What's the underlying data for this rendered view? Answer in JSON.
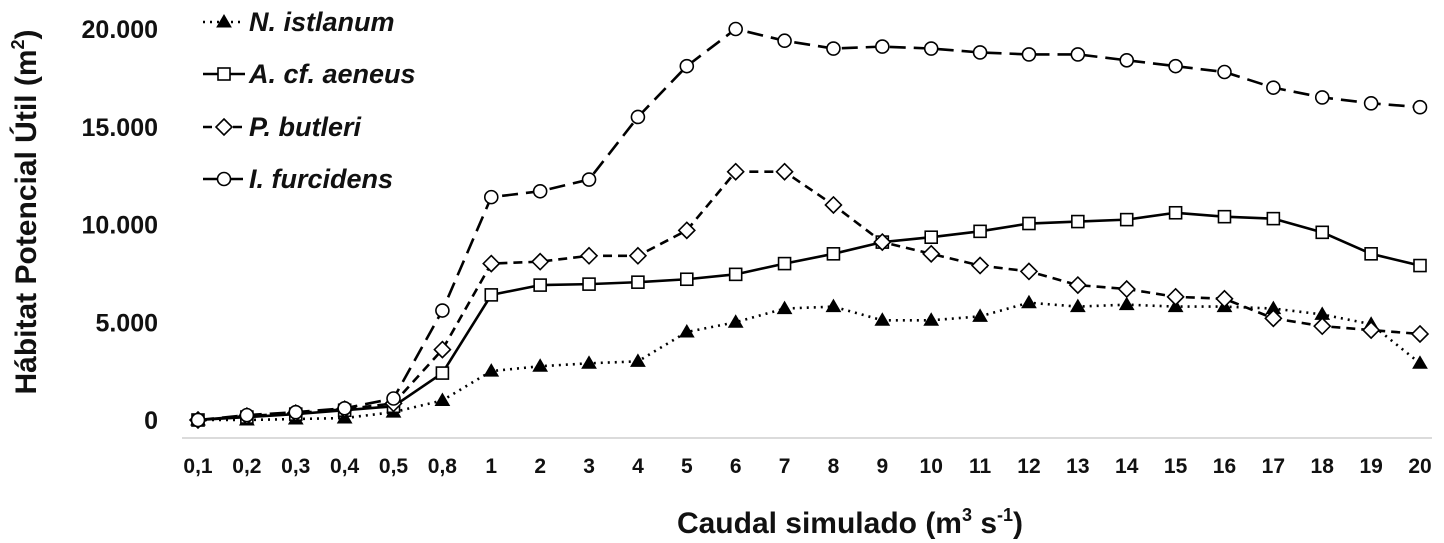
{
  "chart_data": {
    "type": "line",
    "xlabel": "Caudal simulado (m",
    "xlabel_sup1": "3",
    "xlabel_mid": " s",
    "xlabel_sup2": "-1",
    "xlabel_end": ")",
    "ylabel": "Hábitat Potencial Útil (m",
    "ylabel_sup": "2",
    "ylabel_end": ")",
    "categories": [
      "0,1",
      "0,2",
      "0,3",
      "0,4",
      "0,5",
      "0,8",
      "1",
      "2",
      "3",
      "4",
      "5",
      "6",
      "7",
      "8",
      "9",
      "10",
      "11",
      "12",
      "13",
      "14",
      "15",
      "16",
      "17",
      "18",
      "19",
      "20"
    ],
    "ylim": [
      0,
      20000
    ],
    "yticks": [
      {
        "value": 0,
        "label": "0"
      },
      {
        "value": 5000,
        "label": "5.000"
      },
      {
        "value": 10000,
        "label": "10.000"
      },
      {
        "value": 15000,
        "label": "15.000"
      },
      {
        "value": 20000,
        "label": "20.000"
      }
    ],
    "grid": false,
    "legend_position": "top-left",
    "series": [
      {
        "name": "N. istlanum",
        "marker": "triangle",
        "line_style": "dotted",
        "color": "#000000",
        "values": [
          0,
          0,
          50,
          100,
          400,
          1000,
          2500,
          2750,
          2900,
          3000,
          4500,
          5000,
          5700,
          5800,
          5100,
          5100,
          5300,
          6000,
          5800,
          5900,
          5800,
          5800,
          5700,
          5400,
          4900,
          2900
        ]
      },
      {
        "name": "A. cf. aeneus",
        "marker": "square",
        "line_style": "solid",
        "color": "#000000",
        "values": [
          0,
          150,
          300,
          500,
          700,
          2400,
          6400,
          6900,
          6950,
          7050,
          7200,
          7450,
          8000,
          8500,
          9100,
          9350,
          9650,
          10050,
          10150,
          10250,
          10600,
          10400,
          10300,
          9600,
          8500,
          7900
        ]
      },
      {
        "name": "P. butleri",
        "marker": "diamond",
        "line_style": "dashed",
        "color": "#000000",
        "values": [
          0,
          200,
          350,
          550,
          850,
          3600,
          8000,
          8100,
          8400,
          8400,
          9700,
          12700,
          12700,
          11000,
          9100,
          8500,
          7900,
          7600,
          6900,
          6700,
          6300,
          6200,
          5200,
          4800,
          4600,
          4400
        ]
      },
      {
        "name": "I. furcidens",
        "marker": "circle",
        "line_style": "long-dashed",
        "color": "#000000",
        "values": [
          0,
          250,
          400,
          600,
          1100,
          5600,
          11400,
          11700,
          12300,
          15500,
          18100,
          20000,
          19400,
          19000,
          19100,
          19000,
          18800,
          18700,
          18700,
          18400,
          18100,
          17800,
          17000,
          16500,
          16200,
          16000
        ]
      }
    ]
  }
}
